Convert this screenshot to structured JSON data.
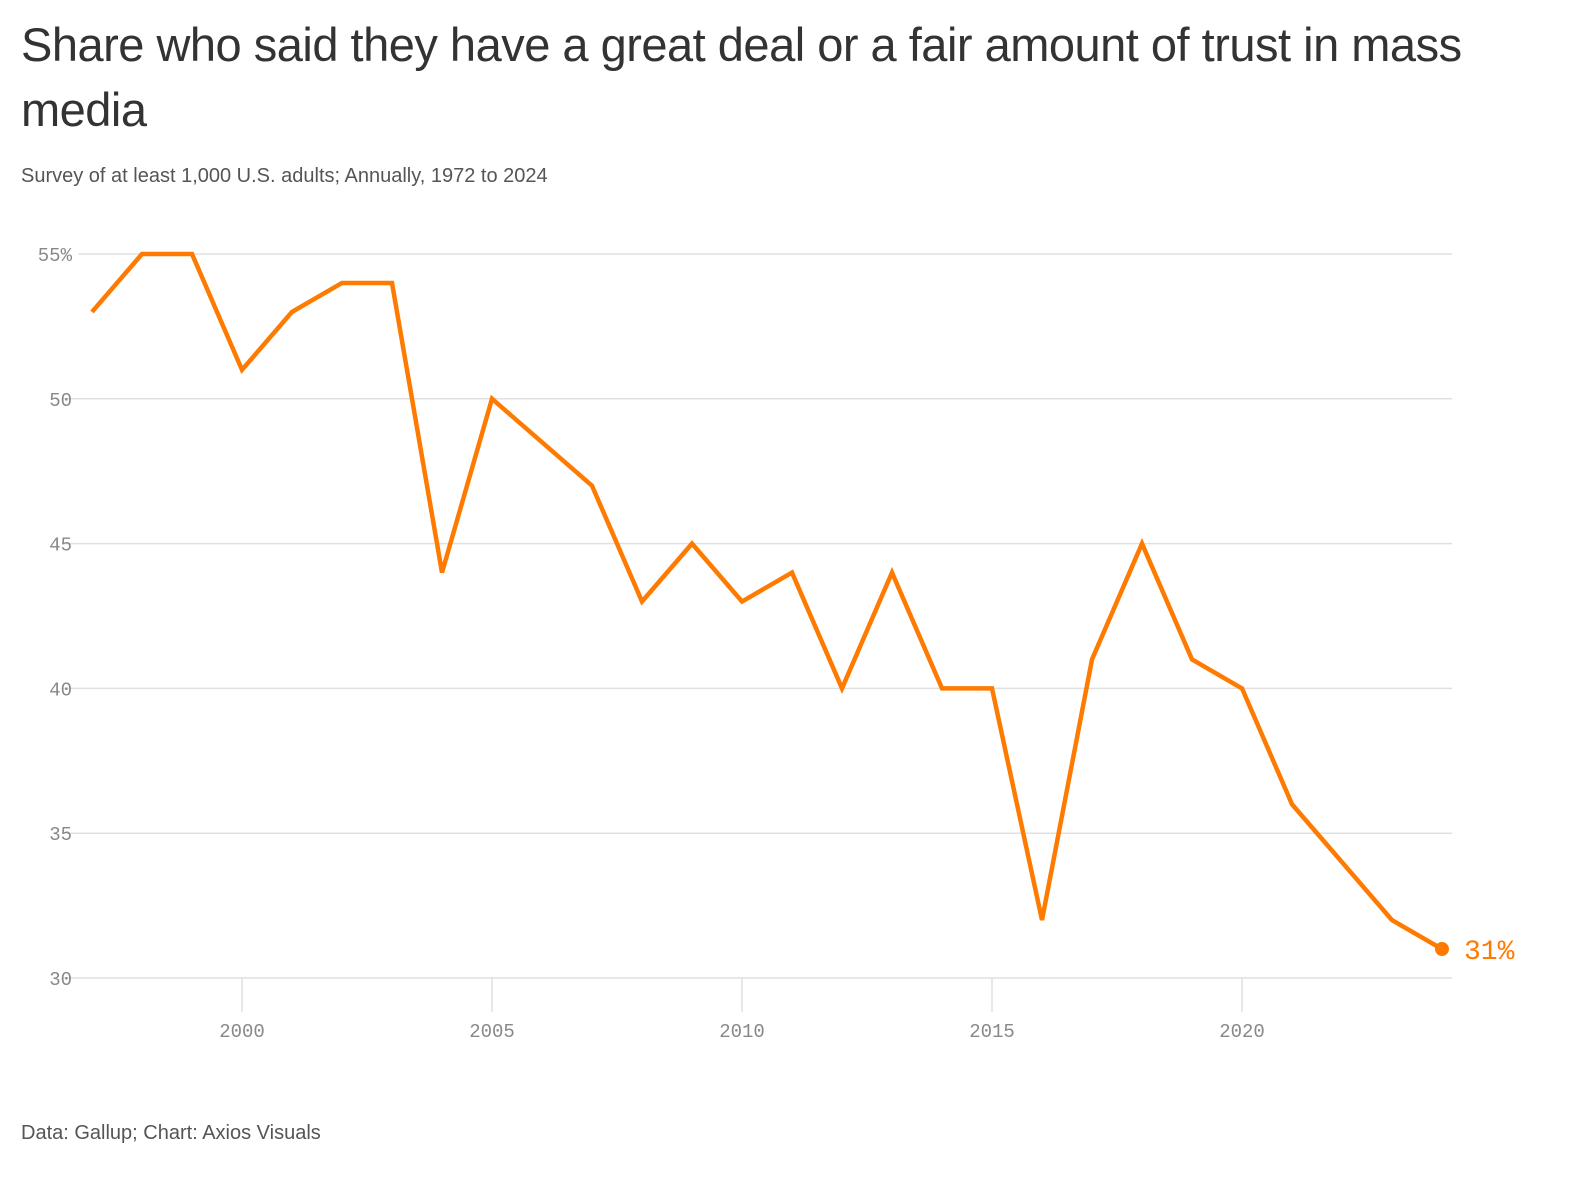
{
  "chart_data": {
    "type": "line",
    "title": "Share who said they have a great deal or a fair amount of trust in mass media",
    "subtitle": "Survey of at least 1,000 U.S. adults; Annually, 1972 to 2024",
    "source": "Data: Gallup; Chart: Axios Visuals",
    "xlabel": "",
    "ylabel": "",
    "xlim": [
      1997,
      2024
    ],
    "ylim": [
      30,
      55
    ],
    "x_ticks": [
      2000,
      2005,
      2010,
      2015,
      2020
    ],
    "y_ticks": [
      {
        "value": 55,
        "label": "55%"
      },
      {
        "value": 50,
        "label": "50"
      },
      {
        "value": 45,
        "label": "45"
      },
      {
        "value": 40,
        "label": "40"
      },
      {
        "value": 35,
        "label": "35"
      },
      {
        "value": 30,
        "label": "30"
      }
    ],
    "grid": true,
    "color": "#ff7a00",
    "series": [
      {
        "name": "Trust in mass media",
        "x": [
          1997,
          1998,
          1999,
          2000,
          2001,
          2002,
          2003,
          2004,
          2005,
          2007,
          2008,
          2009,
          2010,
          2011,
          2012,
          2013,
          2014,
          2015,
          2016,
          2017,
          2018,
          2019,
          2020,
          2021,
          2023,
          2024
        ],
        "values": [
          53,
          55,
          55,
          51,
          53,
          54,
          54,
          44,
          50,
          47,
          43,
          45,
          43,
          44,
          40,
          44,
          40,
          40,
          32,
          41,
          45,
          41,
          40,
          36,
          32,
          31
        ]
      }
    ],
    "end_label": "31%"
  }
}
